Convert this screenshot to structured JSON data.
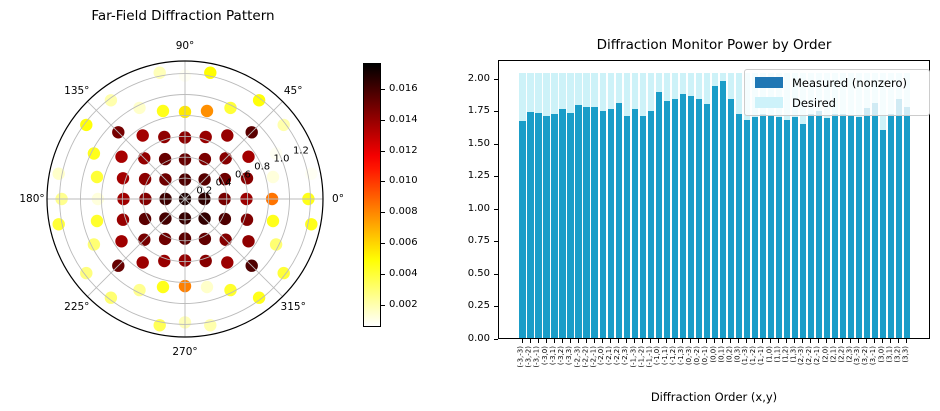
{
  "chart_data": [
    {
      "type": "scatter",
      "projection": "polar",
      "title": "Far-Field Diffraction Pattern",
      "colormap": "hot_r",
      "vmin": 0.0006,
      "vmax": 0.0177,
      "sin_step": 0.185,
      "grid": true,
      "angle_tick_labels": [
        "0°",
        "45°",
        "90°",
        "135°",
        "180°",
        "225°",
        "270°",
        "315°"
      ],
      "r_ticks": [
        0.2,
        0.4,
        0.6,
        0.8,
        1.0,
        1.2
      ],
      "points": [
        [
          -3,
          -3,
          0.0152
        ],
        [
          -3,
          -2,
          0.0138
        ],
        [
          -3,
          -1,
          0.014
        ],
        [
          -3,
          0,
          0.0138
        ],
        [
          -3,
          1,
          0.0137
        ],
        [
          -3,
          2,
          0.0136
        ],
        [
          -3,
          3,
          0.0148
        ],
        [
          -2,
          -3,
          0.0139
        ],
        [
          -2,
          -2,
          0.0148
        ],
        [
          -2,
          -1,
          0.0155
        ],
        [
          -2,
          0,
          0.0145
        ],
        [
          -2,
          1,
          0.0143
        ],
        [
          -2,
          2,
          0.0141
        ],
        [
          -2,
          3,
          0.0137
        ],
        [
          -1,
          -3,
          0.014
        ],
        [
          -1,
          -2,
          0.015
        ],
        [
          -1,
          -1,
          0.016
        ],
        [
          -1,
          0,
          0.0162
        ],
        [
          -1,
          1,
          0.015
        ],
        [
          -1,
          2,
          0.0152
        ],
        [
          -1,
          3,
          0.0142
        ],
        [
          0,
          -3,
          0.0141
        ],
        [
          0,
          -2,
          0.0155
        ],
        [
          0,
          -1,
          0.0164
        ],
        [
          0,
          0,
          0.017
        ],
        [
          0,
          1,
          0.0158
        ],
        [
          0,
          2,
          0.0152
        ],
        [
          0,
          3,
          0.0143
        ],
        [
          1,
          -3,
          0.0144
        ],
        [
          1,
          -2,
          0.0153
        ],
        [
          1,
          -1,
          0.0165
        ],
        [
          1,
          0,
          0.0166
        ],
        [
          1,
          1,
          0.0156
        ],
        [
          1,
          2,
          0.0147
        ],
        [
          1,
          3,
          0.014
        ],
        [
          2,
          -3,
          0.0139
        ],
        [
          2,
          -2,
          0.0145
        ],
        [
          2,
          -1,
          0.0158
        ],
        [
          2,
          0,
          0.0148
        ],
        [
          2,
          1,
          0.015
        ],
        [
          2,
          2,
          0.0144
        ],
        [
          2,
          3,
          0.014
        ],
        [
          3,
          -3,
          0.0158
        ],
        [
          3,
          -2,
          0.0142
        ],
        [
          3,
          -1,
          0.0146
        ],
        [
          3,
          0,
          0.0139
        ],
        [
          3,
          1,
          0.0144
        ],
        [
          3,
          2,
          0.0137
        ],
        [
          3,
          3,
          0.0155
        ],
        [
          4,
          0,
          0.0085
        ],
        [
          -4,
          0,
          0.0012
        ],
        [
          0,
          4,
          0.0055
        ],
        [
          0,
          -4,
          0.0082
        ],
        [
          4,
          1,
          0.0012
        ],
        [
          1,
          4,
          0.0078
        ],
        [
          -1,
          4,
          0.0045
        ],
        [
          -4,
          1,
          0.004
        ],
        [
          -4,
          -1,
          0.0042
        ],
        [
          -1,
          -4,
          0.0045
        ],
        [
          1,
          -4,
          0.0015
        ],
        [
          4,
          -1,
          0.0045
        ],
        [
          4,
          2,
          0.0008
        ],
        [
          2,
          4,
          0.004
        ],
        [
          -2,
          4,
          0.0015
        ],
        [
          -4,
          2,
          0.0045
        ],
        [
          -4,
          -2,
          0.003
        ],
        [
          -2,
          -4,
          0.0025
        ],
        [
          2,
          -4,
          0.0042
        ],
        [
          4,
          -2,
          0.003
        ],
        [
          4,
          3,
          0.002
        ],
        [
          3,
          4,
          0.0048
        ],
        [
          -3,
          4,
          0.002
        ],
        [
          -4,
          3,
          0.0048
        ],
        [
          -4,
          -3,
          0.0028
        ],
        [
          -3,
          -4,
          0.003
        ],
        [
          3,
          -4,
          0.0045
        ],
        [
          4,
          -3,
          0.004
        ],
        [
          5,
          0,
          0.0045
        ],
        [
          -5,
          0,
          0.0025
        ],
        [
          0,
          5,
          0.0008
        ],
        [
          0,
          -5,
          0.0018
        ],
        [
          5,
          1,
          0.0008
        ],
        [
          1,
          5,
          0.005
        ],
        [
          -1,
          5,
          0.0018
        ],
        [
          -5,
          1,
          0.0015
        ],
        [
          -5,
          -1,
          0.004
        ],
        [
          -1,
          -5,
          0.0035
        ],
        [
          1,
          -5,
          0.002
        ],
        [
          5,
          -1,
          0.0045
        ]
      ]
    },
    {
      "type": "bar",
      "title": "Diffraction Monitor Power by Order",
      "xlabel": "Diffraction Order (x,y)",
      "ylim": [
        0,
        2.145
      ],
      "yticks": [
        "0.00",
        "0.25",
        "0.50",
        "0.75",
        "1.00",
        "1.25",
        "1.50",
        "1.75",
        "2.00"
      ],
      "desired_value": 2.04,
      "series": [
        {
          "name": "Measured (nonzero)",
          "legend_color": "#1f77b4",
          "bar_color": "#1a9dc8"
        },
        {
          "name": "Desired",
          "legend_color": "#cdf2fa",
          "bar_color": "#cdf2f8"
        }
      ],
      "labels": [
        "(-3,-3)",
        "(-3,-2)",
        "(-3,-1)",
        "(-3,0)",
        "(-3,1)",
        "(-3,2)",
        "(-3,3)",
        "(-2,-3)",
        "(-2,-2)",
        "(-2,-1)",
        "(-2,0)",
        "(-2,1)",
        "(-2,2)",
        "(-2,3)",
        "(-1,-3)",
        "(-1,-2)",
        "(-1,-1)",
        "(-1,0)",
        "(-1,1)",
        "(-1,2)",
        "(-1,3)",
        "(0,-3)",
        "(0,-2)",
        "(0,-1)",
        "(0,0)",
        "(0,1)",
        "(0,2)",
        "(0,3)",
        "(1,-3)",
        "(1,-2)",
        "(1,-1)",
        "(1,0)",
        "(1,1)",
        "(1,2)",
        "(1,3)",
        "(2,-3)",
        "(2,-2)",
        "(2,-1)",
        "(2,0)",
        "(2,1)",
        "(2,2)",
        "(2,3)",
        "(3,-3)",
        "(3,-2)",
        "(3,-1)",
        "(3,0)",
        "(3,1)",
        "(3,2)",
        "(3,3)"
      ],
      "measured": [
        1.67,
        1.74,
        1.73,
        1.71,
        1.72,
        1.76,
        1.73,
        1.79,
        1.78,
        1.78,
        1.75,
        1.76,
        1.81,
        1.71,
        1.76,
        1.71,
        1.75,
        1.89,
        1.82,
        1.84,
        1.88,
        1.86,
        1.84,
        1.8,
        1.94,
        1.98,
        1.84,
        1.72,
        1.68,
        1.7,
        1.72,
        1.71,
        1.7,
        1.68,
        1.7,
        1.65,
        1.72,
        1.75,
        1.69,
        1.72,
        1.72,
        1.71,
        1.7,
        1.77,
        1.81,
        1.6,
        1.72,
        1.84,
        1.78
      ]
    }
  ],
  "colorbar": {
    "tick_labels": [
      "0.002",
      "0.004",
      "0.006",
      "0.008",
      "0.010",
      "0.012",
      "0.014",
      "0.016"
    ],
    "tick_values": [
      0.002,
      0.004,
      0.006,
      0.008,
      0.01,
      0.012,
      0.014,
      0.016
    ]
  }
}
